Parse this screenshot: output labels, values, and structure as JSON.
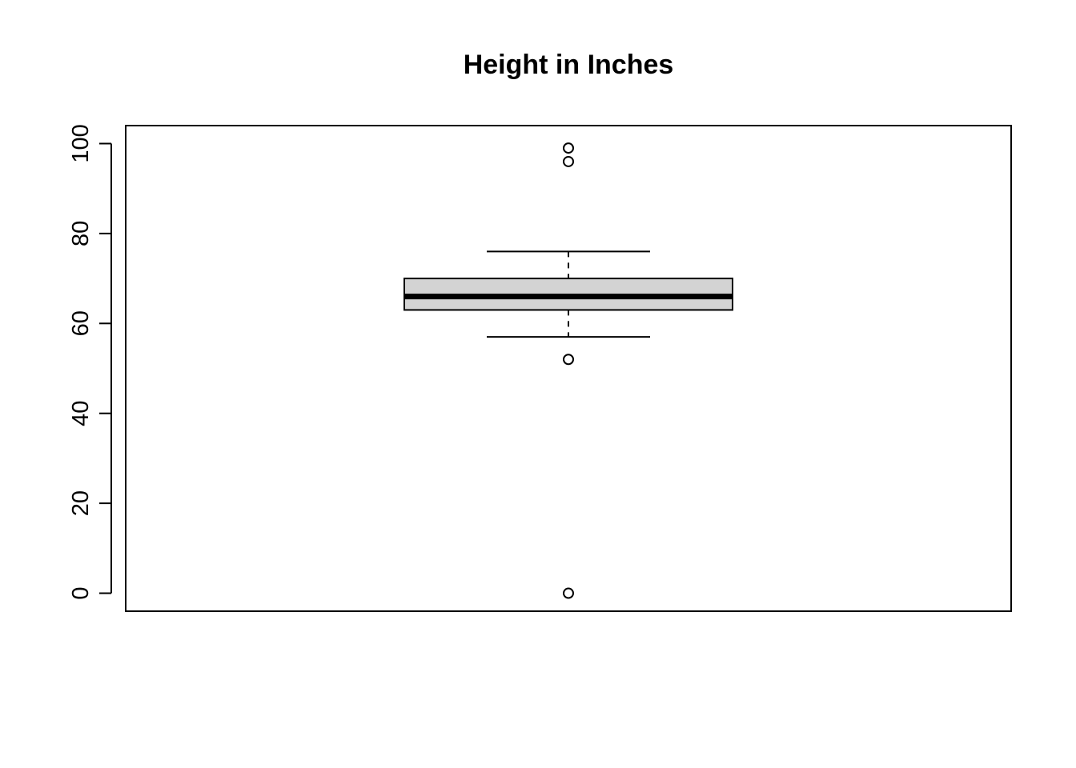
{
  "chart_data": {
    "type": "boxplot",
    "title": "Height in Inches",
    "xlabel": "",
    "ylabel": "",
    "ylim": [
      -4,
      104
    ],
    "y_ticks": [
      0,
      20,
      40,
      60,
      80,
      100
    ],
    "y_tick_labels": [
      "0",
      "20",
      "40",
      "60",
      "80",
      "100"
    ],
    "grid": false,
    "legend": "none",
    "series": [
      {
        "whisker_low": 57,
        "q1": 63,
        "median": 66,
        "q3": 70,
        "whisker_high": 76,
        "outliers": [
          99,
          96,
          52,
          0
        ]
      }
    ],
    "colors": {
      "box_fill": "#d3d3d3",
      "line": "#000000",
      "background": "#ffffff"
    }
  }
}
